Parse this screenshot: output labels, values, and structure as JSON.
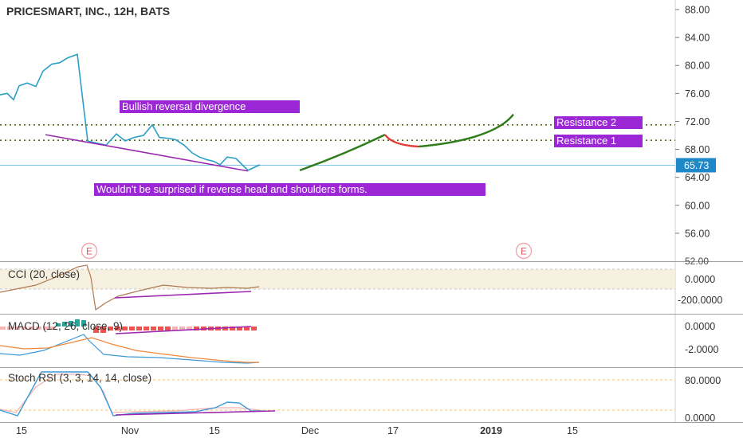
{
  "header": {
    "symbol_title": "PRICESMART, INC., 12H, BATS"
  },
  "colors": {
    "price_line": "#2a9fc6",
    "purple": "#9c27b0",
    "label_purple": "#9c27d6",
    "green_path": "#2e7d1a",
    "red_path": "#e53935",
    "resistance_dotted": "#4e6b1e",
    "price_tag": "#1e88c8",
    "earnings": "#e0515d",
    "cci_line": "#b07a50",
    "macd_line": "#3b9ad8",
    "signal_line": "#f0883a",
    "hist_red": "#ef5350",
    "hist_pink": "#f7b4b4",
    "hist_green": "#26a69a",
    "stoch_k": "#3b9ad8",
    "stoch_d": "#f3b0b0",
    "band": "#f4ecda"
  },
  "chart_data": [
    {
      "type": "line",
      "panel": "price",
      "y_ticks": [
        "88.00",
        "84.00",
        "80.00",
        "76.00",
        "72.00",
        "68.00",
        "64.00",
        "60.00",
        "56.00",
        "52.00"
      ],
      "ylim": [
        52,
        89
      ],
      "current_price": "65.73",
      "series": [
        {
          "values": [
            75.8,
            76.0,
            75.1,
            77.1,
            77.5,
            77.0,
            79.2,
            80.2,
            80.4,
            81.1,
            81.6,
            69.2,
            68.9,
            68.6,
            70.2,
            69.2,
            69.7,
            70.0,
            71.5,
            69.7,
            69.6,
            69.4,
            68.6,
            67.5,
            66.9,
            66.5,
            66.3,
            65.8,
            66.9,
            66.7,
            65.0,
            65.8
          ]
        }
      ],
      "annotations": [
        {
          "text": "Bullish reversal divergence"
        },
        {
          "text": "Wouldn't be surprised if reverse head and shoulders forms."
        },
        {
          "text": "Resistance 2",
          "value": 71.5
        },
        {
          "text": "Resistance 1",
          "value": 69.3
        }
      ],
      "projection": {
        "green_up": [
          [
            0,
            65.0
          ],
          [
            1,
            70.1
          ]
        ],
        "red_dip": [
          [
            0,
            70.1
          ],
          [
            1,
            68.4
          ]
        ],
        "green_up_2": [
          [
            0,
            68.4
          ],
          [
            1,
            73.0
          ]
        ]
      },
      "earnings_markers": [
        "E",
        "E"
      ]
    },
    {
      "type": "line",
      "panel": "cci",
      "title": "CCI (20, close)",
      "y_ticks": [
        "0.0000",
        "-200.0000"
      ]
    },
    {
      "type": "bar",
      "panel": "macd",
      "title": "MACD (12, 26, close, 9)",
      "y_ticks": [
        "0.0000",
        "-2.0000"
      ]
    },
    {
      "type": "line",
      "panel": "stoch_rsi",
      "title": "Stoch RSI (3, 3, 14, 14, close)",
      "y_ticks": [
        "80.0000",
        "0.0000"
      ]
    }
  ],
  "x_axis": {
    "ticks": [
      {
        "label": "15",
        "bold": false
      },
      {
        "label": "Nov",
        "bold": false
      },
      {
        "label": "15",
        "bold": false
      },
      {
        "label": "Dec",
        "bold": false
      },
      {
        "label": "17",
        "bold": false
      },
      {
        "label": "2019",
        "bold": true
      },
      {
        "label": "15",
        "bold": false
      }
    ]
  }
}
